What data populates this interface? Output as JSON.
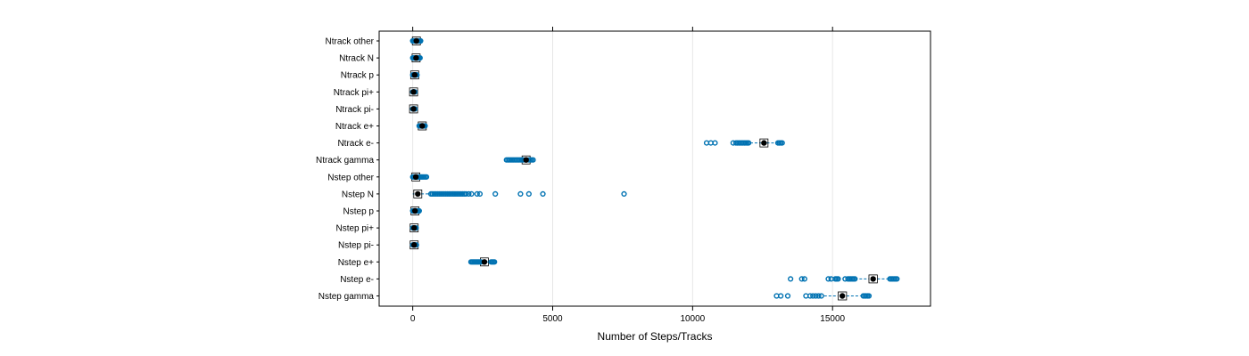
{
  "chart_data": {
    "type": "boxplot",
    "xlabel": "Number of Steps/Tracks",
    "xlim": [
      -1200,
      18500
    ],
    "x_ticks": [
      0,
      5000,
      10000,
      15000
    ],
    "x_tick_labels": [
      "0",
      "5000",
      "10000",
      "15000"
    ],
    "grid": "vertical",
    "colors": {
      "points": "#0072b2",
      "box": "#000000",
      "frame": "#000000",
      "grid": "#e6e6e6"
    },
    "categories": [
      {
        "label": "Ntrack other",
        "box": {
          "q1": 80,
          "median": 130,
          "q3": 180,
          "whisker_low": 0,
          "whisker_high": 280
        },
        "outliers": [
          0,
          20,
          40,
          60,
          80,
          100,
          120,
          140,
          160,
          180,
          200,
          220,
          240,
          260,
          280
        ]
      },
      {
        "label": "Ntrack N",
        "box": {
          "q1": 80,
          "median": 120,
          "q3": 160,
          "whisker_low": 0,
          "whisker_high": 260
        },
        "outliers": [
          0,
          20,
          40,
          60,
          80,
          100,
          120,
          140,
          160,
          180,
          200,
          220,
          240,
          260
        ]
      },
      {
        "label": "Ntrack p",
        "box": {
          "q1": 40,
          "median": 70,
          "q3": 100,
          "whisker_low": 0,
          "whisker_high": 150
        },
        "outliers": [
          0,
          20,
          40,
          60,
          80,
          100,
          120,
          140,
          150
        ]
      },
      {
        "label": "Ntrack pi+",
        "box": {
          "q1": 10,
          "median": 30,
          "q3": 50,
          "whisker_low": 0,
          "whisker_high": 80
        },
        "outliers": [
          0,
          20,
          40,
          60,
          80
        ]
      },
      {
        "label": "Ntrack pi-",
        "box": {
          "q1": 10,
          "median": 30,
          "q3": 50,
          "whisker_low": 0,
          "whisker_high": 80
        },
        "outliers": [
          0,
          20,
          40,
          60,
          80
        ]
      },
      {
        "label": "Ntrack e+",
        "box": {
          "q1": 300,
          "median": 340,
          "q3": 380,
          "whisker_low": 230,
          "whisker_high": 440
        },
        "outliers": [
          230,
          250,
          270,
          290,
          310,
          330,
          350,
          370,
          390,
          410,
          440
        ]
      },
      {
        "label": "Ntrack e-",
        "box": {
          "q1": 12450,
          "median": 12550,
          "q3": 12650,
          "whisker_low": 11900,
          "whisker_high": 13100
        },
        "outliers": [
          10500,
          10650,
          10800,
          11450,
          11550,
          11600,
          11650,
          11700,
          11750,
          11800,
          11850,
          11900,
          11950,
          12000,
          13050,
          13100,
          13150,
          13200
        ]
      },
      {
        "label": "Ntrack gamma",
        "box": {
          "q1": 3980,
          "median": 4050,
          "q3": 4120,
          "whisker_low": 3800,
          "whisker_high": 4300
        },
        "outliers": [
          3350,
          3400,
          3450,
          3500,
          3550,
          3600,
          3650,
          3700,
          3750,
          3800,
          3850,
          3900,
          3950,
          4150,
          4200,
          4250,
          4300
        ]
      },
      {
        "label": "Nstep other",
        "box": {
          "q1": 60,
          "median": 110,
          "q3": 170,
          "whisker_low": 0,
          "whisker_high": 360
        },
        "outliers": [
          0,
          40,
          80,
          120,
          160,
          200,
          240,
          280,
          320,
          360,
          400,
          450,
          490
        ]
      },
      {
        "label": "Nstep N",
        "box": {
          "q1": 60,
          "median": 180,
          "q3": 300,
          "whisker_low": 0,
          "whisker_high": 620
        },
        "outliers": [
          650,
          700,
          760,
          820,
          880,
          940,
          1000,
          1060,
          1120,
          1180,
          1240,
          1300,
          1360,
          1420,
          1480,
          1540,
          1600,
          1660,
          1720,
          1780,
          1840,
          1900,
          2000,
          2100,
          2300,
          2400,
          2950,
          3850,
          4150,
          4650,
          7550
        ]
      },
      {
        "label": "Nstep p",
        "box": {
          "q1": 40,
          "median": 80,
          "q3": 130,
          "whisker_low": 0,
          "whisker_high": 230
        },
        "outliers": [
          0,
          30,
          60,
          90,
          120,
          150,
          180,
          210,
          230
        ]
      },
      {
        "label": "Nstep pi+",
        "box": {
          "q1": 20,
          "median": 50,
          "q3": 80,
          "whisker_low": 0,
          "whisker_high": 120
        },
        "outliers": [
          0,
          30,
          60,
          90,
          120
        ]
      },
      {
        "label": "Nstep pi-",
        "box": {
          "q1": 20,
          "median": 50,
          "q3": 80,
          "whisker_low": 0,
          "whisker_high": 130
        },
        "outliers": [
          0,
          30,
          60,
          90,
          130
        ]
      },
      {
        "label": "Nstep e+",
        "box": {
          "q1": 2470,
          "median": 2560,
          "q3": 2640,
          "whisker_low": 2300,
          "whisker_high": 2780
        },
        "outliers": [
          2080,
          2120,
          2160,
          2200,
          2240,
          2280,
          2320,
          2360,
          2400,
          2440,
          2800,
          2840,
          2880,
          2920
        ]
      },
      {
        "label": "Nstep e-",
        "box": {
          "q1": 16300,
          "median": 16450,
          "q3": 16600,
          "whisker_low": 15800,
          "whisker_high": 17000
        },
        "outliers": [
          13500,
          13900,
          14000,
          14850,
          14950,
          15100,
          15150,
          15200,
          15450,
          15550,
          15600,
          15650,
          15700,
          15750,
          15800,
          17050,
          17100,
          17150,
          17200,
          17250,
          17300
        ]
      },
      {
        "label": "Nstep gamma",
        "box": {
          "q1": 15200,
          "median": 15350,
          "q3": 15500,
          "whisker_low": 14700,
          "whisker_high": 16000
        },
        "outliers": [
          13000,
          13150,
          13400,
          14050,
          14200,
          14300,
          14400,
          14500,
          14600,
          16100,
          16150,
          16200,
          16250,
          16300
        ]
      }
    ]
  }
}
